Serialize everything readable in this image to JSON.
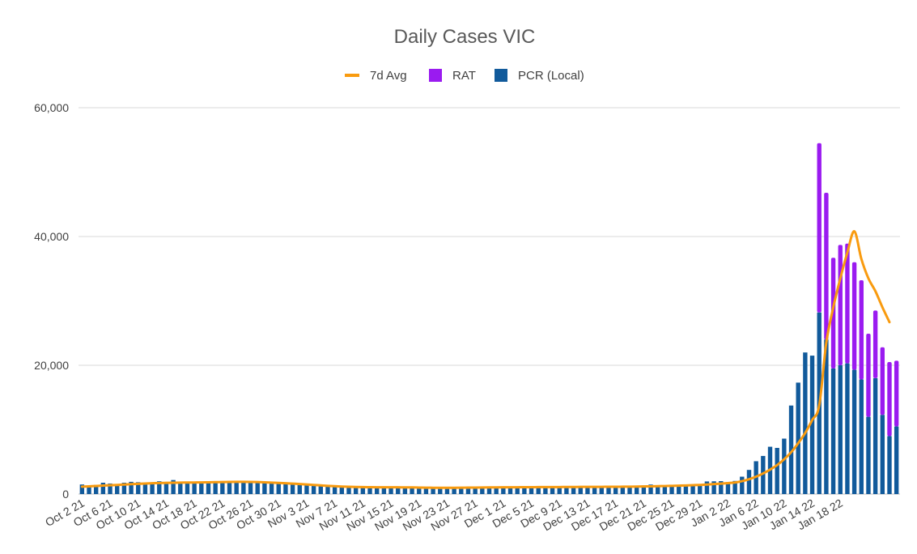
{
  "colors": {
    "avg": "#F99B0F",
    "rat": "#9A1BF0",
    "pcr": "#115A9B",
    "grid": "#D9D9D9",
    "text": "#404040",
    "title": "#595959"
  },
  "chart_data": {
    "type": "bar",
    "title": "Daily Cases VIC",
    "xlabel": "",
    "ylabel": "",
    "ylim": [
      0,
      60000
    ],
    "yticks": [
      0,
      20000,
      40000,
      60000
    ],
    "ytick_labels": [
      "0",
      "20,000",
      "40,000",
      "60,000"
    ],
    "grid": true,
    "legend_position": "top",
    "legend": [
      {
        "name": "7d Avg",
        "type": "line",
        "color": "#F99B0F"
      },
      {
        "name": "RAT",
        "type": "bar",
        "color": "#9A1BF0"
      },
      {
        "name": "PCR (Local)",
        "type": "bar",
        "color": "#115A9B"
      }
    ],
    "x_tick_labels": [
      "Oct 2 21",
      "Oct 6 21",
      "Oct 10 21",
      "Oct 14 21",
      "Oct 18 21",
      "Oct 22 21",
      "Oct 26 21",
      "Oct 30 21",
      "Nov 3 21",
      "Nov 7 21",
      "Nov 11 21",
      "Nov 15 21",
      "Nov 19 21",
      "Nov 23 21",
      "Nov 27 21",
      "Dec 1 21",
      "Dec 5 21",
      "Dec 9 21",
      "Dec 13 21",
      "Dec 17 21",
      "Dec 21 21",
      "Dec 25 21",
      "Dec 29 21",
      "Jan 2 22",
      "Jan 6 22",
      "Jan 10 22",
      "Jan 14 22",
      "Jan 18 22"
    ],
    "stacked": true,
    "series": [
      {
        "name": "PCR (Local)",
        "values": [
          1488,
          1220,
          1420,
          1760,
          1640,
          1420,
          1760,
          1900,
          1840,
          1680,
          1750,
          1990,
          1860,
          2180,
          1900,
          1920,
          1860,
          1910,
          1900,
          1930,
          1930,
          1950,
          1930,
          1930,
          1900,
          1980,
          1780,
          1660,
          1660,
          1640,
          1600,
          1620,
          1530,
          1480,
          1390,
          1230,
          1240,
          1130,
          1100,
          1030,
          1130,
          1100,
          1030,
          1080,
          1050,
          1100,
          1010,
          1020,
          990,
          960,
          1000,
          940,
          880,
          1000,
          1070,
          1000,
          1040,
          1010,
          1100,
          1060,
          1080,
          1030,
          1120,
          1110,
          1120,
          1030,
          1130,
          1040,
          1060,
          1170,
          1140,
          1100,
          1090,
          1170,
          1060,
          1170,
          1110,
          1150,
          1170,
          1180,
          1340,
          1480,
          1270,
          1290,
          1300,
          1360,
          1320,
          1340,
          1420,
          1960,
          1980,
          2010,
          1850,
          2040,
          2700,
          3750,
          5100,
          5920,
          7350,
          7170,
          8610,
          13750,
          17310,
          21990,
          21500,
          28200,
          24000,
          19500,
          20000,
          20300,
          19300,
          17800,
          12000,
          18000,
          12300,
          9000,
          10500
        ]
      },
      {
        "name": "RAT",
        "values": [
          0,
          0,
          0,
          0,
          0,
          0,
          0,
          0,
          0,
          0,
          0,
          0,
          0,
          0,
          0,
          0,
          0,
          0,
          0,
          0,
          0,
          0,
          0,
          0,
          0,
          0,
          0,
          0,
          0,
          0,
          0,
          0,
          0,
          0,
          0,
          0,
          0,
          0,
          0,
          0,
          0,
          0,
          0,
          0,
          0,
          0,
          0,
          0,
          0,
          0,
          0,
          0,
          0,
          0,
          0,
          0,
          0,
          0,
          0,
          0,
          0,
          0,
          0,
          0,
          0,
          0,
          0,
          0,
          0,
          0,
          0,
          0,
          0,
          0,
          0,
          0,
          0,
          0,
          0,
          0,
          0,
          0,
          0,
          0,
          0,
          0,
          0,
          0,
          0,
          0,
          0,
          0,
          0,
          0,
          0,
          0,
          0,
          0,
          0,
          0,
          0,
          0,
          0,
          0,
          0,
          26300,
          22800,
          17200,
          18700,
          18600,
          16700,
          15400,
          12900,
          10500,
          10500,
          11500,
          10200
        ]
      },
      {
        "name": "7d Avg",
        "type": "line",
        "values": [
          1150,
          1200,
          1260,
          1320,
          1370,
          1420,
          1480,
          1540,
          1590,
          1640,
          1680,
          1720,
          1740,
          1760,
          1780,
          1790,
          1800,
          1810,
          1830,
          1850,
          1870,
          1890,
          1900,
          1900,
          1890,
          1870,
          1830,
          1780,
          1730,
          1680,
          1620,
          1560,
          1490,
          1420,
          1350,
          1280,
          1220,
          1170,
          1130,
          1100,
          1080,
          1070,
          1060,
          1060,
          1060,
          1050,
          1040,
          1030,
          1010,
          990,
          980,
          970,
          970,
          980,
          990,
          1000,
          1010,
          1020,
          1030,
          1040,
          1050,
          1060,
          1060,
          1070,
          1070,
          1080,
          1080,
          1090,
          1090,
          1100,
          1100,
          1110,
          1110,
          1120,
          1120,
          1130,
          1130,
          1140,
          1150,
          1160,
          1180,
          1200,
          1230,
          1250,
          1280,
          1310,
          1340,
          1380,
          1420,
          1480,
          1550,
          1620,
          1700,
          1790,
          2000,
          2300,
          2700,
          3200,
          3800,
          4500,
          5400,
          6500,
          7900,
          9500,
          11500,
          13800,
          23500,
          29000,
          33500,
          37500,
          40800,
          36500,
          33500,
          31500,
          29000,
          26700
        ]
      }
    ]
  }
}
